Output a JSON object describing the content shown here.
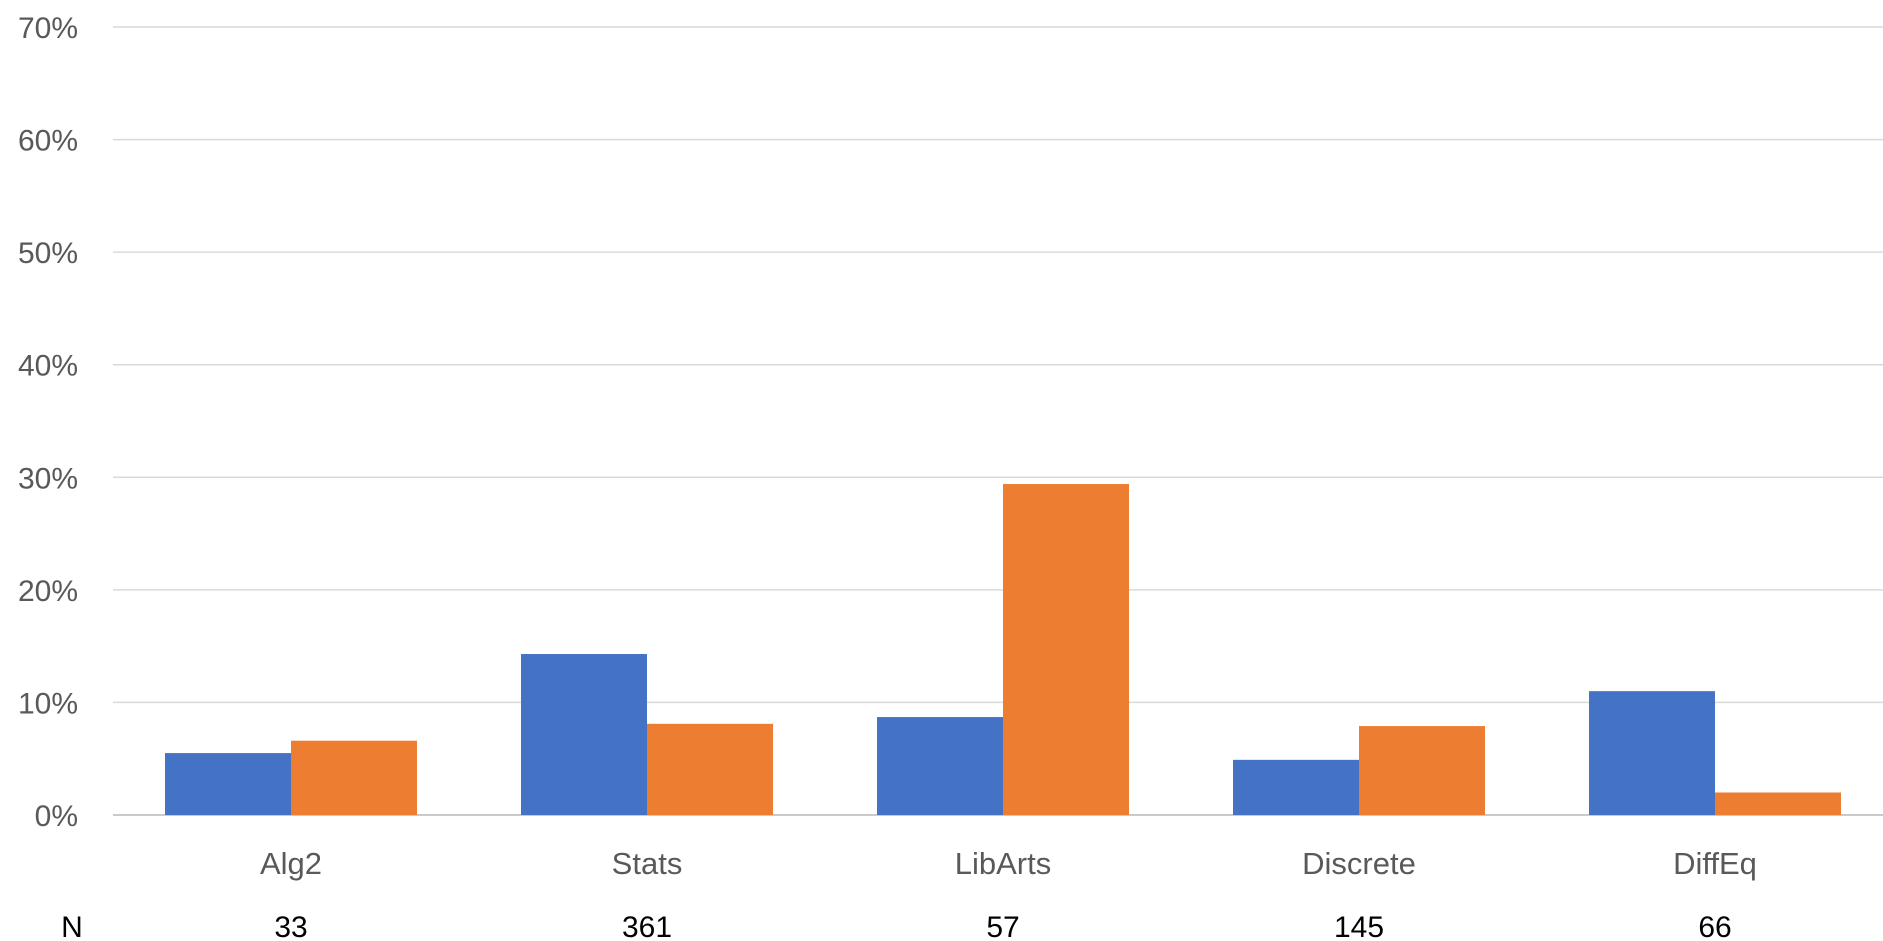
{
  "chart_data": {
    "type": "bar",
    "categories": [
      "Alg2",
      "Stats",
      "LibArts",
      "Discrete",
      "DiffEq"
    ],
    "series": [
      {
        "color": "#4472C4",
        "values": [
          5.5,
          14.3,
          8.7,
          4.9,
          11.0
        ]
      },
      {
        "color": "#ED7D31",
        "values": [
          6.6,
          8.1,
          29.4,
          7.9,
          2.0
        ]
      }
    ],
    "ylim": [
      0,
      70
    ],
    "yticks": [
      0,
      10,
      20,
      30,
      40,
      50,
      60,
      70
    ],
    "ytick_labels": [
      "0%",
      "10%",
      "20%",
      "30%",
      "40%",
      "50%",
      "60%",
      "70%"
    ],
    "grid": true,
    "gridline_color": "#D9D9D9",
    "n_row": {
      "label": "N",
      "values": [
        "33",
        "361",
        "57",
        "145",
        "66"
      ]
    }
  }
}
